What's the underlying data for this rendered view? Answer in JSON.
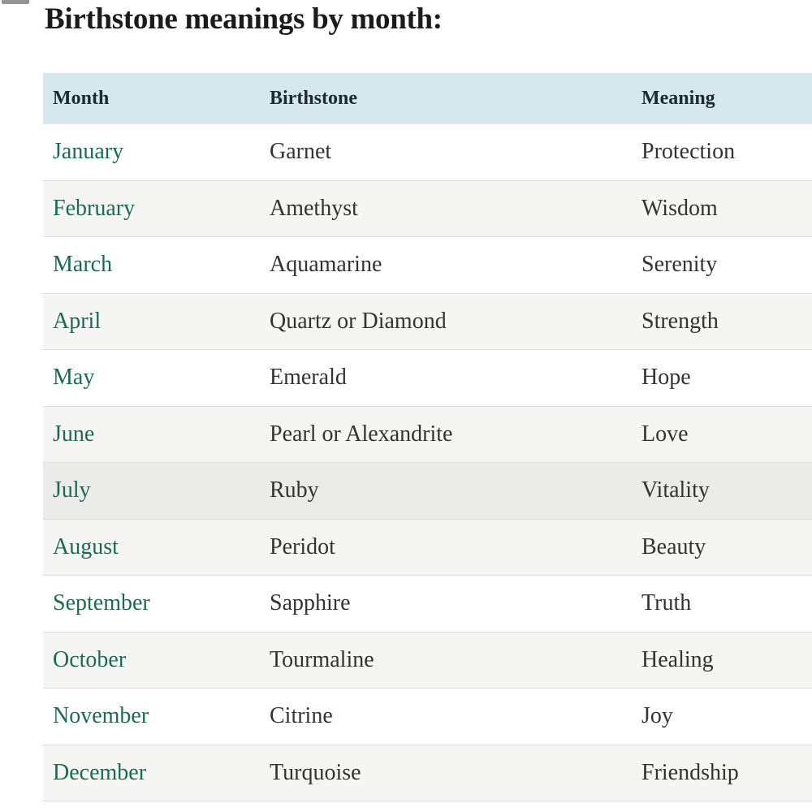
{
  "page": {
    "title": "Birthstone meanings by month:"
  },
  "colors": {
    "header_bg": "#d7e7ee",
    "header_text": "#1c2b33",
    "body_text": "#333333",
    "month_link_green": "#1d6a52",
    "row_alt_bg": "#f5f5f3",
    "row_highlight_bg": "#ebebe9",
    "divider": "#dcdcdc",
    "page_bg": "#ffffff"
  },
  "table": {
    "headers": [
      "Month",
      "Birthstone",
      "Meaning"
    ],
    "rows": [
      {
        "month": "January",
        "birthstone": "Garnet",
        "meaning": "Protection",
        "highlighted": false
      },
      {
        "month": "February",
        "birthstone": "Amethyst",
        "meaning": "Wisdom",
        "highlighted": false
      },
      {
        "month": "March",
        "birthstone": "Aquamarine",
        "meaning": "Serenity",
        "highlighted": false
      },
      {
        "month": "April",
        "birthstone": "Quartz or Diamond",
        "meaning": "Strength",
        "highlighted": false
      },
      {
        "month": "May",
        "birthstone": "Emerald",
        "meaning": "Hope",
        "highlighted": false
      },
      {
        "month": "June",
        "birthstone": "Pearl or Alexandrite",
        "meaning": "Love",
        "highlighted": false
      },
      {
        "month": "July",
        "birthstone": "Ruby",
        "meaning": "Vitality",
        "highlighted": true
      },
      {
        "month": "August",
        "birthstone": "Peridot",
        "meaning": "Beauty",
        "highlighted": false
      },
      {
        "month": "September",
        "birthstone": "Sapphire",
        "meaning": "Truth",
        "highlighted": false
      },
      {
        "month": "October",
        "birthstone": "Tourmaline",
        "meaning": "Healing",
        "highlighted": false
      },
      {
        "month": "November",
        "birthstone": "Citrine",
        "meaning": "Joy",
        "highlighted": false
      },
      {
        "month": "December",
        "birthstone": "Turquoise",
        "meaning": "Friendship",
        "highlighted": false
      }
    ]
  }
}
